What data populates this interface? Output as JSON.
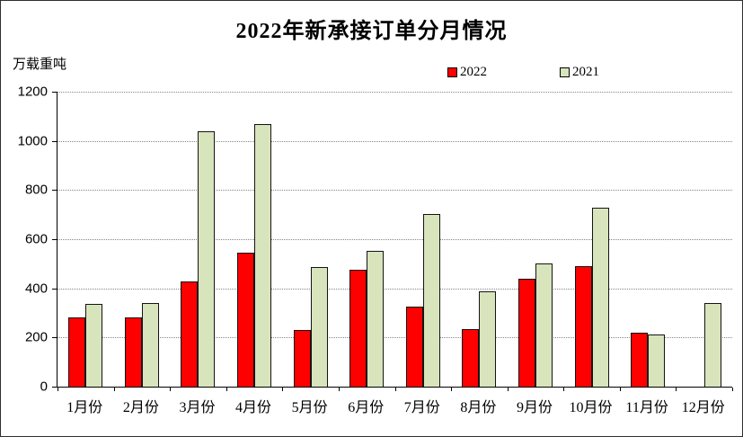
{
  "chart_data": {
    "type": "bar",
    "title": "2022年新承接订单分月情况",
    "ylabel": "万载重吨",
    "xlabel": "",
    "categories": [
      "1月份",
      "2月份",
      "3月份",
      "4月份",
      "5月份",
      "6月份",
      "7月份",
      "8月份",
      "9月份",
      "10月份",
      "11月份",
      "12月份"
    ],
    "series": [
      {
        "name": "2022",
        "color": "#ff0000",
        "values": [
          280,
          282,
          427,
          545,
          230,
          475,
          325,
          233,
          438,
          490,
          220,
          null
        ]
      },
      {
        "name": "2021",
        "color": "#d8e4bc",
        "values": [
          336,
          341,
          1039,
          1069,
          488,
          551,
          701,
          389,
          500,
          729,
          214,
          341
        ]
      }
    ],
    "ylim": [
      0,
      1200
    ],
    "yticks": [
      0,
      200,
      400,
      600,
      800,
      1000,
      1200
    ],
    "grid": "horizontal-dotted",
    "legend_position": "top-center",
    "bar_border_color": "#141414"
  }
}
